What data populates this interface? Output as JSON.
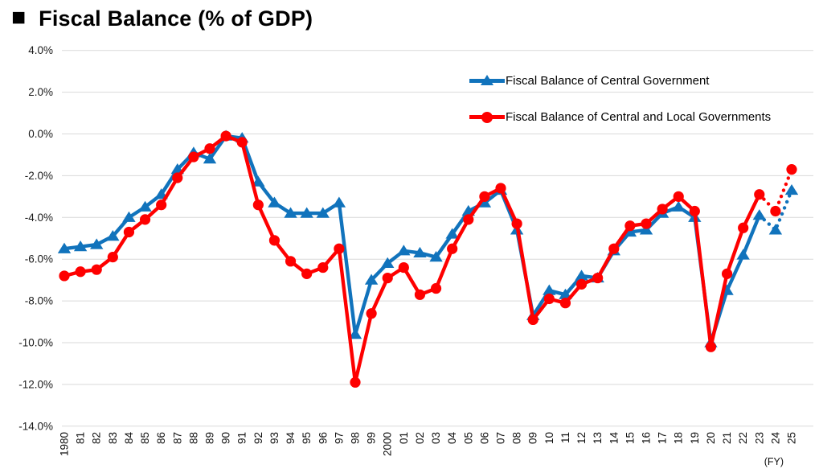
{
  "header": {
    "bullet": "■",
    "title": "Fiscal Balance (% of GDP)"
  },
  "chart_data": {
    "type": "line",
    "title": "Fiscal Balance (% of GDP)",
    "xlabel": "",
    "ylabel": "",
    "x_axis_unit": "(FY)",
    "ylim": [
      -14,
      4
    ],
    "grid": true,
    "legend_position": "top-right-inside",
    "x_labels": [
      "1980",
      "81",
      "82",
      "83",
      "84",
      "85",
      "86",
      "87",
      "88",
      "89",
      "90",
      "91",
      "92",
      "93",
      "94",
      "95",
      "96",
      "97",
      "98",
      "99",
      "2000",
      "01",
      "02",
      "03",
      "04",
      "05",
      "06",
      "07",
      "08",
      "09",
      "10",
      "11",
      "12",
      "13",
      "14",
      "15",
      "16",
      "17",
      "18",
      "19",
      "20",
      "21",
      "22",
      "23",
      "24",
      "25"
    ],
    "y_ticks": [
      {
        "label": "4.0%",
        "value": 4
      },
      {
        "label": "2.0%",
        "value": 2
      },
      {
        "label": "0.0%",
        "value": 0
      },
      {
        "label": "-2.0%",
        "value": -2
      },
      {
        "label": "-4.0%",
        "value": -4
      },
      {
        "label": "-6.0%",
        "value": -6
      },
      {
        "label": "-8.0%",
        "value": -8
      },
      {
        "label": "-10.0%",
        "value": -10
      },
      {
        "label": "-12.0%",
        "value": -12
      },
      {
        "label": "-14.0%",
        "value": -14
      }
    ],
    "dotted_from_index": 43,
    "dotted_meaning": "projection for FY2024-FY2025",
    "series": [
      {
        "name": "Fiscal Balance of Central Government",
        "color": "#1173BC",
        "marker": "triangle",
        "values": [
          -5.5,
          -5.4,
          -5.3,
          -4.9,
          -4.0,
          -3.5,
          -2.9,
          -1.7,
          -0.9,
          -1.2,
          -0.1,
          -0.2,
          -2.3,
          -3.3,
          -3.8,
          -3.8,
          -3.8,
          -3.3,
          -9.6,
          -7.0,
          -6.2,
          -5.6,
          -5.7,
          -5.9,
          -4.8,
          -3.7,
          -3.3,
          -2.7,
          -4.6,
          -8.7,
          -7.5,
          -7.7,
          -6.8,
          -6.9,
          -5.6,
          -4.7,
          -4.6,
          -3.8,
          -3.5,
          -4.0,
          -10.0,
          -7.5,
          -5.8,
          -3.9,
          -4.6,
          -2.7
        ]
      },
      {
        "name": "Fiscal Balance of Central and Local Governments",
        "color": "#FE0000",
        "marker": "circle",
        "values": [
          -6.8,
          -6.6,
          -6.5,
          -5.9,
          -4.7,
          -4.1,
          -3.4,
          -2.1,
          -1.1,
          -0.7,
          -0.1,
          -0.4,
          -3.4,
          -5.1,
          -6.1,
          -6.7,
          -6.4,
          -5.5,
          -11.9,
          -8.6,
          -6.9,
          -6.4,
          -7.7,
          -7.4,
          -5.5,
          -4.1,
          -3.0,
          -2.6,
          -4.3,
          -8.9,
          -7.9,
          -8.1,
          -7.2,
          -6.9,
          -5.5,
          -4.4,
          -4.3,
          -3.6,
          -3.0,
          -3.7,
          -10.2,
          -6.7,
          -4.5,
          -2.9,
          -3.7,
          -1.7
        ]
      }
    ]
  }
}
